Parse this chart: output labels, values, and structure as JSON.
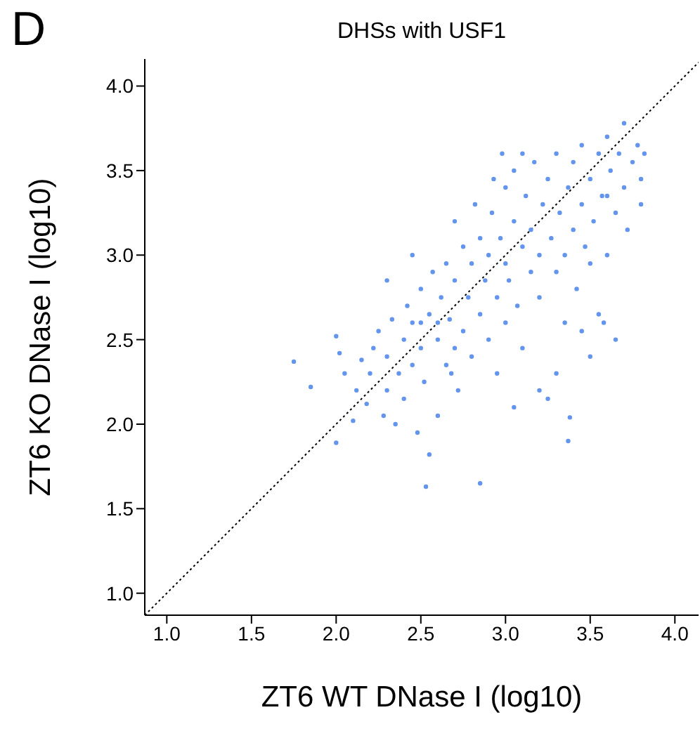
{
  "chart_data": {
    "type": "scatter",
    "title": "DHSs with USF1",
    "xlabel": "ZT6 WT DNase I (log10)",
    "ylabel": "ZT6 KO DNase I (log10)",
    "annotations": [
      "D"
    ],
    "xlim": [
      0.87,
      4.14
    ],
    "ylim": [
      0.87,
      4.16
    ],
    "xticks": [
      {
        "value": 1,
        "label": "1.0"
      },
      {
        "value": 1.5,
        "label": "1.5"
      },
      {
        "value": 2,
        "label": "2.0"
      },
      {
        "value": 2.5,
        "label": "2.5"
      },
      {
        "value": 3,
        "label": "3.0"
      },
      {
        "value": 3.5,
        "label": "3.5"
      },
      {
        "value": 4,
        "label": "4.0"
      }
    ],
    "yticks": [
      {
        "value": 1,
        "label": "1.0"
      },
      {
        "value": 1.5,
        "label": "1.5"
      },
      {
        "value": 2,
        "label": "2.0"
      },
      {
        "value": 2.5,
        "label": "2.5"
      },
      {
        "value": 3,
        "label": "3.0"
      },
      {
        "value": 3.5,
        "label": "3.5"
      },
      {
        "value": 4,
        "label": "4.0"
      }
    ],
    "grid": false,
    "legend": false,
    "marker": "circle",
    "series": [
      {
        "color": "#6495ed",
        "x": [
          1.75,
          1.85,
          2.0,
          2.02,
          2.05,
          2.0,
          2.1,
          2.12,
          2.15,
          2.18,
          2.2,
          2.22,
          2.25,
          2.28,
          2.3,
          2.3,
          2.33,
          2.35,
          2.37,
          2.4,
          2.4,
          2.42,
          2.45,
          2.45,
          2.48,
          2.5,
          2.5,
          2.52,
          2.53,
          2.55,
          2.55,
          2.57,
          2.6,
          2.6,
          2.62,
          2.65,
          2.65,
          2.67,
          2.7,
          2.7,
          2.72,
          2.75,
          2.75,
          2.78,
          2.8,
          2.8,
          2.82,
          2.85,
          2.85,
          2.85,
          2.88,
          2.9,
          2.9,
          2.92,
          2.95,
          2.95,
          2.97,
          3.0,
          3.0,
          3.0,
          3.02,
          3.05,
          3.05,
          3.07,
          3.1,
          3.1,
          3.12,
          3.15,
          3.15,
          3.17,
          3.2,
          3.2,
          3.22,
          3.25,
          3.25,
          3.27,
          3.3,
          3.3,
          3.32,
          3.35,
          3.35,
          3.37,
          3.37,
          3.38,
          3.4,
          3.4,
          3.42,
          3.45,
          3.45,
          3.47,
          3.5,
          3.5,
          3.52,
          3.55,
          3.55,
          3.57,
          3.6,
          3.6,
          3.62,
          3.65,
          3.67,
          3.7,
          3.7,
          3.72,
          3.75,
          3.78,
          3.8,
          3.82,
          3.8,
          3.58,
          3.5,
          3.45,
          3.3,
          3.2,
          2.6,
          2.7,
          2.5,
          3.05,
          2.68,
          2.93,
          3.1,
          2.98,
          2.45,
          2.3,
          3.65,
          3.6
        ],
        "values": [
          2.37,
          2.22,
          2.52,
          2.42,
          2.3,
          1.89,
          2.02,
          2.2,
          2.38,
          2.12,
          2.3,
          2.45,
          2.55,
          2.05,
          2.2,
          2.4,
          2.62,
          2.0,
          2.3,
          2.5,
          2.15,
          2.7,
          2.35,
          2.6,
          1.95,
          2.8,
          2.45,
          2.25,
          1.63,
          1.82,
          2.65,
          2.9,
          2.5,
          2.05,
          2.75,
          2.95,
          2.35,
          2.62,
          2.85,
          3.2,
          2.2,
          2.55,
          3.05,
          2.75,
          2.95,
          2.4,
          3.3,
          1.65,
          2.65,
          3.1,
          2.85,
          3.0,
          2.5,
          3.25,
          2.75,
          2.3,
          3.1,
          2.95,
          3.4,
          2.6,
          2.85,
          3.2,
          3.5,
          2.7,
          3.05,
          2.45,
          3.35,
          2.9,
          3.15,
          3.55,
          3.0,
          2.75,
          3.3,
          2.15,
          3.45,
          3.1,
          2.9,
          3.6,
          3.25,
          2.6,
          3.0,
          3.4,
          1.9,
          2.04,
          3.15,
          3.55,
          2.8,
          3.3,
          3.65,
          3.05,
          3.45,
          2.95,
          3.2,
          3.6,
          2.65,
          3.35,
          3.0,
          3.7,
          3.5,
          3.25,
          3.6,
          3.4,
          3.78,
          3.15,
          3.55,
          3.65,
          3.45,
          3.6,
          3.3,
          2.6,
          2.4,
          2.55,
          2.3,
          2.2,
          2.6,
          2.45,
          2.6,
          2.1,
          2.3,
          3.45,
          3.6,
          3.6,
          3.0,
          2.85,
          2.5,
          3.35
        ]
      },
      {
        "type": "line",
        "color": "#000000",
        "line_style": "dotted",
        "marker": "none",
        "x": [
          0.87,
          4.14
        ],
        "values": [
          0.87,
          4.14
        ]
      }
    ]
  }
}
